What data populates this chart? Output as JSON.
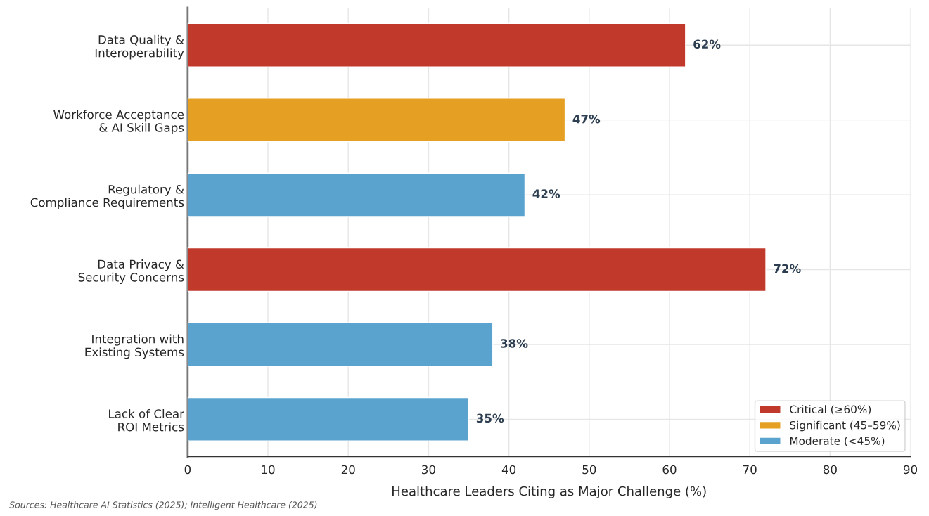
{
  "chart_data": {
    "type": "bar",
    "orientation": "horizontal",
    "categories": [
      "Data Quality &\nInteroperability",
      "Workforce Acceptance\n& AI Skill Gaps",
      "Regulatory &\nCompliance Requirements",
      "Data Privacy &\nSecurity Concerns",
      "Integration with\nExisting Systems",
      "Lack of Clear\nROI Metrics"
    ],
    "series": [
      {
        "name": "Critical (≥60%)",
        "color": "#c0392b",
        "values": [
          62,
          null,
          null,
          72,
          null,
          null
        ]
      },
      {
        "name": "Significant (45–59%)",
        "color": "#e5a024",
        "values": [
          null,
          47,
          null,
          null,
          null,
          null
        ]
      },
      {
        "name": "Moderate (<45%)",
        "color": "#5ba3cf",
        "values": [
          null,
          null,
          42,
          null,
          38,
          35
        ]
      }
    ],
    "value_labels": [
      "62%",
      "47%",
      "42%",
      "72%",
      "38%",
      "35%"
    ],
    "xlabel": "Healthcare Leaders Citing as Major Challenge (%)",
    "xlim": [
      0,
      90
    ],
    "xticks": [
      0,
      10,
      20,
      30,
      40,
      50,
      60,
      70,
      80,
      90
    ],
    "grid": true,
    "legend": "bottom right",
    "annotations": [
      "Sources: Healthcare AI Statistics (2025); Intelligent Healthcare (2025)"
    ]
  }
}
